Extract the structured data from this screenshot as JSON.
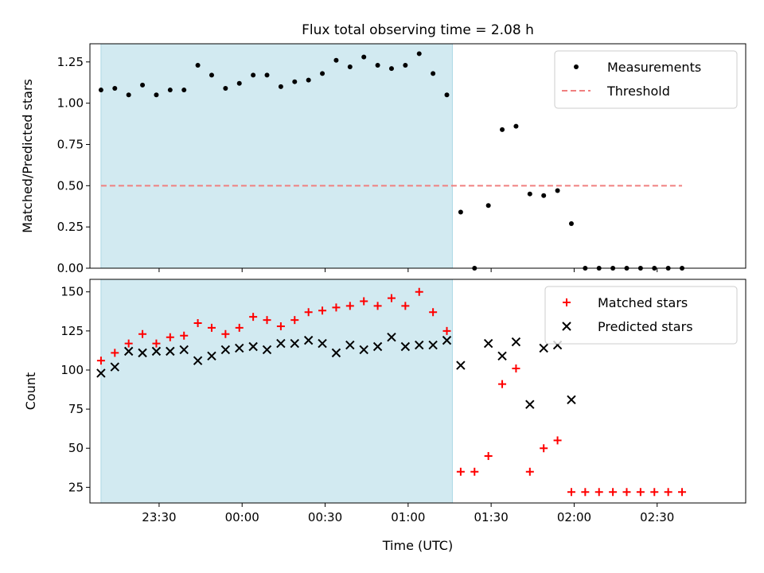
{
  "figure": {
    "title": "Flux total observing time = 2.08 h"
  },
  "chart_data": [
    {
      "type": "scatter",
      "title": "Flux total observing time = 2.08 h",
      "xlabel": "",
      "ylabel": "Matched/Predicted stars",
      "x_is_time_utc": true,
      "xlim": [
        "23:05",
        "03:02"
      ],
      "ylim": [
        0,
        1.36
      ],
      "yticks": [
        0.0,
        0.25,
        0.5,
        0.75,
        1.0,
        1.25
      ],
      "ytick_labels": [
        "0.00",
        "0.25",
        "0.50",
        "0.75",
        "1.00",
        "1.25"
      ],
      "shaded_region": {
        "x": [
          "23:09",
          "01:16"
        ],
        "color": "#add8e6"
      },
      "legend_position": "top-right",
      "series": [
        {
          "name": "Measurements",
          "marker": "dot",
          "color": "#000000",
          "x": [
            "23:09",
            "23:14",
            "23:19",
            "23:24",
            "23:29",
            "23:34",
            "23:39",
            "23:44",
            "23:49",
            "23:54",
            "23:59",
            "00:04",
            "00:09",
            "00:14",
            "00:19",
            "00:24",
            "00:29",
            "00:34",
            "00:39",
            "00:44",
            "00:49",
            "00:54",
            "00:59",
            "01:04",
            "01:09",
            "01:14",
            "01:19",
            "01:24",
            "01:29",
            "01:34",
            "01:39",
            "01:44",
            "01:49",
            "01:54",
            "01:59",
            "02:04",
            "02:09",
            "02:14",
            "02:19",
            "02:24",
            "02:29",
            "02:34",
            "02:39"
          ],
          "y": [
            1.08,
            1.09,
            1.05,
            1.11,
            1.05,
            1.08,
            1.08,
            1.23,
            1.17,
            1.09,
            1.12,
            1.17,
            1.17,
            1.1,
            1.13,
            1.14,
            1.18,
            1.26,
            1.22,
            1.28,
            1.23,
            1.21,
            1.23,
            1.3,
            1.18,
            1.05,
            0.34,
            0.0,
            0.38,
            0.84,
            0.86,
            0.45,
            0.44,
            0.47,
            0.27,
            0.0,
            0.0,
            0.0,
            0.0,
            0.0,
            0.0,
            0.0,
            0.0
          ]
        },
        {
          "name": "Threshold",
          "marker": "dashed-line",
          "color": "#f08080",
          "x": [
            "23:09",
            "02:39"
          ],
          "y": [
            0.5,
            0.5
          ]
        }
      ]
    },
    {
      "type": "scatter",
      "xlabel": "Time (UTC)",
      "ylabel": "Count",
      "x_is_time_utc": true,
      "xlim": [
        "23:05",
        "03:02"
      ],
      "ylim": [
        15,
        158
      ],
      "yticks": [
        25,
        50,
        75,
        100,
        125,
        150
      ],
      "ytick_labels": [
        "25",
        "50",
        "75",
        "100",
        "125",
        "150"
      ],
      "xticks": [
        "23:30",
        "00:00",
        "00:30",
        "01:00",
        "01:30",
        "02:00",
        "02:30"
      ],
      "shaded_region": {
        "x": [
          "23:09",
          "01:16"
        ],
        "color": "#add8e6"
      },
      "legend_position": "top-right",
      "series": [
        {
          "name": "Matched stars",
          "marker": "plus",
          "color": "#ff0000",
          "x": [
            "23:09",
            "23:14",
            "23:19",
            "23:24",
            "23:29",
            "23:34",
            "23:39",
            "23:44",
            "23:49",
            "23:54",
            "23:59",
            "00:04",
            "00:09",
            "00:14",
            "00:19",
            "00:24",
            "00:29",
            "00:34",
            "00:39",
            "00:44",
            "00:49",
            "00:54",
            "00:59",
            "01:04",
            "01:09",
            "01:14",
            "01:19",
            "01:24",
            "01:29",
            "01:34",
            "01:39",
            "01:44",
            "01:49",
            "01:54",
            "01:59",
            "02:04",
            "02:09",
            "02:14",
            "02:19",
            "02:24",
            "02:29",
            "02:34",
            "02:39"
          ],
          "y": [
            106,
            111,
            117,
            123,
            117,
            121,
            122,
            130,
            127,
            123,
            127,
            134,
            132,
            128,
            132,
            137,
            138,
            140,
            141,
            144,
            141,
            146,
            141,
            150,
            137,
            125,
            35,
            35,
            45,
            91,
            101,
            35,
            50,
            55,
            22,
            22,
            22,
            22,
            22,
            22,
            22,
            22,
            22
          ]
        },
        {
          "name": "Predicted stars",
          "marker": "x",
          "color": "#000000",
          "x": [
            "23:09",
            "23:14",
            "23:19",
            "23:24",
            "23:29",
            "23:34",
            "23:39",
            "23:44",
            "23:49",
            "23:54",
            "23:59",
            "00:04",
            "00:09",
            "00:14",
            "00:19",
            "00:24",
            "00:29",
            "00:34",
            "00:39",
            "00:44",
            "00:49",
            "00:54",
            "00:59",
            "01:04",
            "01:09",
            "01:14",
            "01:19",
            "01:29",
            "01:34",
            "01:39",
            "01:44",
            "01:49",
            "01:54",
            "01:59"
          ],
          "y": [
            98,
            102,
            112,
            111,
            112,
            112,
            113,
            106,
            109,
            113,
            114,
            115,
            113,
            117,
            117,
            119,
            117,
            111,
            116,
            113,
            115,
            121,
            115,
            116,
            116,
            119,
            103,
            117,
            109,
            118,
            78,
            114,
            116,
            81
          ]
        }
      ]
    }
  ]
}
